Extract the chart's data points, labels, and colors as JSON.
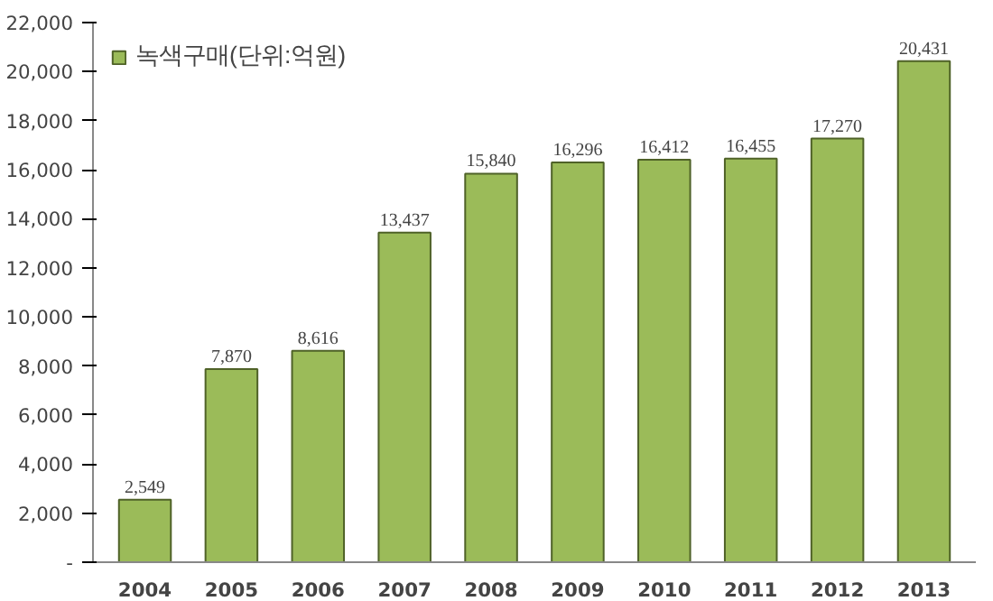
{
  "chart_data": {
    "type": "bar",
    "categories": [
      "2004",
      "2005",
      "2006",
      "2007",
      "2008",
      "2009",
      "2010",
      "2011",
      "2012",
      "2013"
    ],
    "series": [
      {
        "name": "녹색구매(단위:억원)",
        "color": "#9bbb59",
        "values": [
          2549,
          7870,
          8616,
          13437,
          15840,
          16296,
          16412,
          16455,
          17270,
          20431
        ]
      }
    ],
    "value_labels": [
      "2,549",
      "7,870",
      "8,616",
      "13,437",
      "15,840",
      "16,296",
      "16,412",
      "16,455",
      "17,270",
      "20,431"
    ],
    "ylim": [
      0,
      22000
    ],
    "yticks": [
      {
        "value": 0,
        "label": "-"
      },
      {
        "value": 2000,
        "label": "2,000"
      },
      {
        "value": 4000,
        "label": "4,000"
      },
      {
        "value": 6000,
        "label": "6,000"
      },
      {
        "value": 8000,
        "label": "8,000"
      },
      {
        "value": 10000,
        "label": "10,000"
      },
      {
        "value": 12000,
        "label": "12,000"
      },
      {
        "value": 14000,
        "label": "14,000"
      },
      {
        "value": 16000,
        "label": "16,000"
      },
      {
        "value": 18000,
        "label": "18,000"
      },
      {
        "value": 20000,
        "label": "20,000"
      },
      {
        "value": 22000,
        "label": "22,000"
      }
    ],
    "legend": "top left",
    "grid": false
  }
}
